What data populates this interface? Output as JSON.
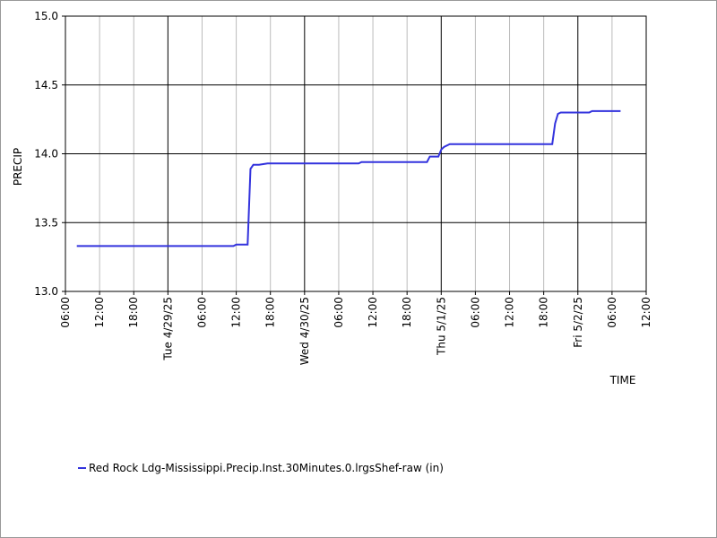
{
  "chart_data": {
    "type": "line",
    "x_label": "TIME",
    "y_label": "PRECIP",
    "x": [
      "2025-04-28T08:00",
      "2025-04-29T11:30",
      "2025-04-29T12:00",
      "2025-04-29T14:00",
      "2025-04-29T14:30",
      "2025-04-29T15:00",
      "2025-04-29T16:00",
      "2025-04-29T17:30",
      "2025-04-30T09:30",
      "2025-04-30T10:00",
      "2025-04-30T21:30",
      "2025-04-30T22:00",
      "2025-04-30T23:30",
      "2025-05-01T00:00",
      "2025-05-01T00:30",
      "2025-05-01T01:30",
      "2025-05-01T19:30",
      "2025-05-01T20:00",
      "2025-05-01T20:30",
      "2025-05-01T21:00",
      "2025-05-02T02:00",
      "2025-05-02T02:30",
      "2025-05-02T07:30"
    ],
    "series": [
      {
        "name": "Red Rock Ldg-Mississippi.Precip.Inst.30Minutes.0.lrgsShef-raw (in)",
        "color": "#3333dd",
        "values": [
          13.33,
          13.33,
          13.34,
          13.34,
          13.89,
          13.92,
          13.92,
          13.93,
          13.93,
          13.94,
          13.94,
          13.98,
          13.98,
          14.03,
          14.05,
          14.07,
          14.07,
          14.22,
          14.29,
          14.3,
          14.3,
          14.31,
          14.31
        ]
      }
    ],
    "xlim": [
      "2025-04-28T06:00",
      "2025-05-02T12:00"
    ],
    "xticks": [
      {
        "value": "2025-04-28T06:00",
        "label": "06:00"
      },
      {
        "value": "2025-04-28T12:00",
        "label": "12:00"
      },
      {
        "value": "2025-04-28T18:00",
        "label": "18:00"
      },
      {
        "value": "2025-04-29T00:00",
        "label": "Tue 4/29/25"
      },
      {
        "value": "2025-04-29T06:00",
        "label": "06:00"
      },
      {
        "value": "2025-04-29T12:00",
        "label": "12:00"
      },
      {
        "value": "2025-04-29T18:00",
        "label": "18:00"
      },
      {
        "value": "2025-04-30T00:00",
        "label": "Wed 4/30/25"
      },
      {
        "value": "2025-04-30T06:00",
        "label": "06:00"
      },
      {
        "value": "2025-04-30T12:00",
        "label": "12:00"
      },
      {
        "value": "2025-04-30T18:00",
        "label": "18:00"
      },
      {
        "value": "2025-05-01T00:00",
        "label": "Thu 5/1/25"
      },
      {
        "value": "2025-05-01T06:00",
        "label": "06:00"
      },
      {
        "value": "2025-05-01T12:00",
        "label": "12:00"
      },
      {
        "value": "2025-05-01T18:00",
        "label": "18:00"
      },
      {
        "value": "2025-05-02T00:00",
        "label": "Fri 5/2/25"
      },
      {
        "value": "2025-05-02T06:00",
        "label": "06:00"
      },
      {
        "value": "2025-05-02T12:00",
        "label": "12:00"
      }
    ],
    "ylim": [
      13,
      15
    ],
    "yticks": [
      {
        "value": 13,
        "label": "13.0"
      },
      13.5,
      {
        "value": 14,
        "label": "14.0"
      },
      14.5,
      {
        "value": 15,
        "label": "15.0"
      }
    ],
    "grid": true,
    "legend": "bottom-left"
  }
}
